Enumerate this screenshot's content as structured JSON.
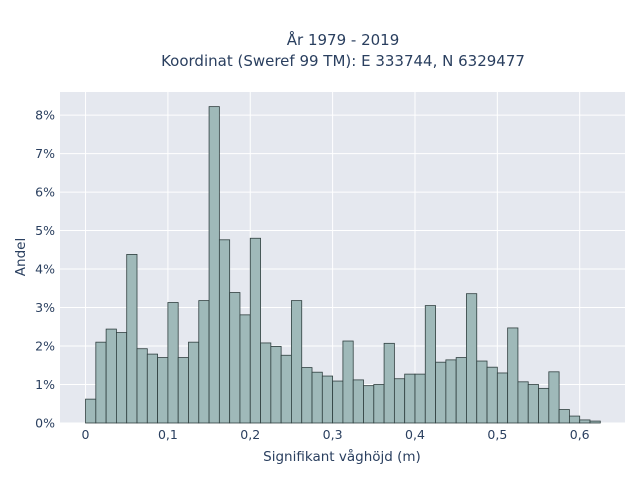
{
  "chart_data": {
    "type": "bar",
    "title_line1": "År 1979 - 2019",
    "title_line2": "Koordinat (Sweref 99 TM): E 333744, N 6329477",
    "xlabel": "Signifikant våghöjd (m)",
    "ylabel": "Andel",
    "x_ticks": [
      "0",
      "0,1",
      "0,2",
      "0,3",
      "0,4",
      "0,5",
      "0,6"
    ],
    "x_tick_values": [
      0,
      0.1,
      0.2,
      0.3,
      0.4,
      0.5,
      0.6
    ],
    "y_ticks": [
      "0%",
      "1%",
      "2%",
      "3%",
      "4%",
      "5%",
      "6%",
      "7%",
      "8%"
    ],
    "y_tick_values": [
      0,
      1,
      2,
      3,
      4,
      5,
      6,
      7,
      8
    ],
    "xlim": [
      -0.031,
      0.655
    ],
    "ylim": [
      0,
      8.6
    ],
    "bin_width": 0.0125,
    "bin_start": 0,
    "values": [
      0.62,
      2.1,
      2.44,
      2.35,
      4.38,
      1.93,
      1.79,
      1.7,
      3.13,
      1.7,
      2.1,
      3.18,
      8.22,
      4.76,
      3.39,
      2.81,
      4.8,
      2.08,
      1.99,
      1.76,
      3.18,
      1.44,
      1.32,
      1.22,
      1.09,
      2.13,
      1.12,
      0.97,
      1.0,
      2.07,
      1.15,
      1.27,
      1.27,
      3.05,
      1.58,
      1.64,
      1.7,
      3.36,
      1.61,
      1.45,
      1.3,
      2.47,
      1.07,
      1.0,
      0.9,
      1.33,
      0.35,
      0.18,
      0.08,
      0.05
    ],
    "grid": true,
    "colors": {
      "bar_fill": "#9fb9b9",
      "bar_edge": "#2f3f3f",
      "plot_bg": "#e5e8ef",
      "grid": "#ffffff",
      "text": "#2a3f5f"
    }
  }
}
